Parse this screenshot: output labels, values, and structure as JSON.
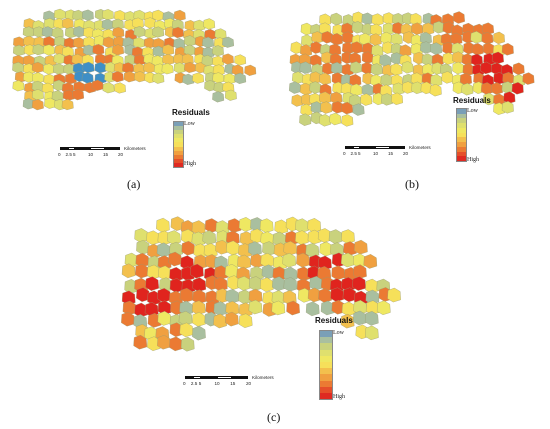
{
  "panels": [
    {
      "id": "a",
      "caption": "(a)",
      "legend_title": "Residuals",
      "legend_low": "Low",
      "legend_high": "High",
      "scale_ticks": [
        "0",
        "2.5",
        "5",
        "10",
        "15",
        "20"
      ],
      "scale_unit": "Kilometers"
    },
    {
      "id": "b",
      "caption": "(b)",
      "legend_title": "Residuals",
      "legend_low": "Low",
      "legend_high": "High",
      "scale_ticks": [
        "0",
        "2.5",
        "5",
        "10",
        "15",
        "20"
      ],
      "scale_unit": "Kilometers"
    },
    {
      "id": "c",
      "caption": "(c)",
      "legend_title": "Residuals",
      "legend_low": "Low",
      "legend_high": "High",
      "scale_ticks": [
        "0",
        "2.5",
        "5",
        "10",
        "15",
        "20"
      ],
      "scale_unit": "Kilometers"
    }
  ],
  "colors": {
    "ramp": [
      "#7a9fb7",
      "#a9bf9f",
      "#c9d27d",
      "#dfe06e",
      "#efe862",
      "#f6e05a",
      "#f3c04d",
      "#f0a040",
      "#eb7a33",
      "#e54f2a",
      "#df2a22"
    ],
    "low_blue": "#3f8fc6",
    "high_red": "#e0241e",
    "boundary": "#9a9a70"
  }
}
